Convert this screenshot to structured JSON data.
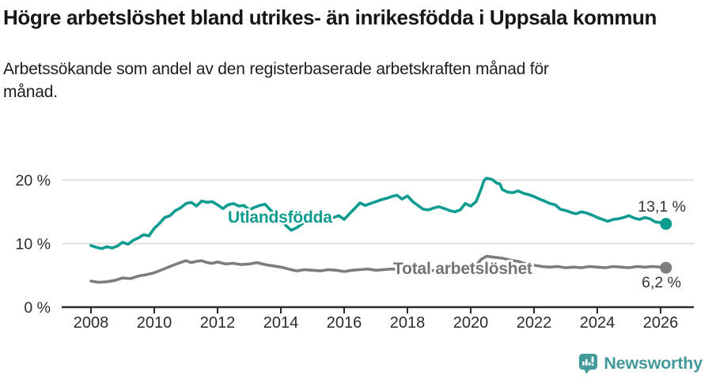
{
  "header": {
    "title": "Högre arbetslöshet bland utrikes- än inrikesfödda i Uppsala kommun",
    "subtitle": "Arbetssökande som andel av den registerbaserade arbetskraften månad för månad."
  },
  "footer": {
    "brand": "Newsworthy"
  },
  "colors": {
    "accent_teal": "#0d9c8f",
    "logo_teal": "#449a9b",
    "series_gray": "#7d7d7d",
    "label_gray": "#737373",
    "axis_dark": "#2a2a2a",
    "gridline": "#d8d8d8",
    "end_label": "#333333"
  },
  "chart_data": {
    "type": "line",
    "title": "Högre arbetslöshet bland utrikes- än inrikesfödda i Uppsala kommun",
    "subtitle": "Arbetssökande som andel av den registerbaserade arbetskraften månad för månad.",
    "unit": "% av arbetskraften",
    "grid": true,
    "x_axis": {
      "ticks": [
        2008,
        2010,
        2012,
        2014,
        2016,
        2018,
        2020,
        2022,
        2024,
        2026
      ],
      "tick_labels": [
        "2008",
        "2010",
        "2012",
        "2014",
        "2016",
        "2018",
        "2020",
        "2022",
        "2024",
        "2026"
      ],
      "range": [
        2007.08,
        2027.05
      ]
    },
    "y_axis": {
      "tick_values": [
        0,
        10,
        20
      ],
      "tick_labels": [
        "0 %",
        "10 %",
        "20 %"
      ],
      "range": [
        0,
        24
      ]
    },
    "series": [
      {
        "name": "Utlandsfödda",
        "color": "#0d9c8f",
        "label_color": "#0d9c8f",
        "end_label": "13,1 %",
        "end_value": 13.1,
        "points": [
          [
            2008.0,
            9.7
          ],
          [
            2008.17,
            9.4
          ],
          [
            2008.33,
            9.2
          ],
          [
            2008.5,
            9.5
          ],
          [
            2008.67,
            9.3
          ],
          [
            2008.83,
            9.6
          ],
          [
            2009.0,
            10.2
          ],
          [
            2009.17,
            9.9
          ],
          [
            2009.33,
            10.5
          ],
          [
            2009.5,
            10.9
          ],
          [
            2009.67,
            11.4
          ],
          [
            2009.83,
            11.2
          ],
          [
            2010.0,
            12.4
          ],
          [
            2010.17,
            13.2
          ],
          [
            2010.33,
            14.1
          ],
          [
            2010.5,
            14.4
          ],
          [
            2010.67,
            15.2
          ],
          [
            2010.83,
            15.6
          ],
          [
            2011.0,
            16.3
          ],
          [
            2011.17,
            16.5
          ],
          [
            2011.33,
            15.9
          ],
          [
            2011.5,
            16.7
          ],
          [
            2011.67,
            16.5
          ],
          [
            2011.83,
            16.6
          ],
          [
            2012.0,
            16.1
          ],
          [
            2012.17,
            15.5
          ],
          [
            2012.33,
            16.1
          ],
          [
            2012.5,
            16.3
          ],
          [
            2012.67,
            15.9
          ],
          [
            2012.83,
            16.0
          ],
          [
            2013.0,
            15.3
          ],
          [
            2013.17,
            15.7
          ],
          [
            2013.33,
            16.0
          ],
          [
            2013.5,
            16.2
          ],
          [
            2013.67,
            15.3
          ],
          [
            2013.83,
            14.5
          ],
          [
            2014.0,
            13.7
          ],
          [
            2014.17,
            12.8
          ],
          [
            2014.33,
            12.1
          ],
          [
            2014.5,
            12.5
          ],
          [
            2014.67,
            13.1
          ],
          [
            2014.83,
            13.6
          ],
          [
            2015.0,
            13.9
          ],
          [
            2015.17,
            14.2
          ],
          [
            2015.33,
            13.9
          ],
          [
            2015.5,
            14.3
          ],
          [
            2015.67,
            14.1
          ],
          [
            2015.83,
            14.4
          ],
          [
            2016.0,
            13.8
          ],
          [
            2016.17,
            14.7
          ],
          [
            2016.33,
            15.5
          ],
          [
            2016.5,
            16.4
          ],
          [
            2016.67,
            16.0
          ],
          [
            2016.83,
            16.3
          ],
          [
            2017.0,
            16.6
          ],
          [
            2017.17,
            16.9
          ],
          [
            2017.33,
            17.1
          ],
          [
            2017.5,
            17.4
          ],
          [
            2017.67,
            17.6
          ],
          [
            2017.83,
            17.0
          ],
          [
            2018.0,
            17.5
          ],
          [
            2018.17,
            16.6
          ],
          [
            2018.33,
            16.0
          ],
          [
            2018.5,
            15.4
          ],
          [
            2018.67,
            15.3
          ],
          [
            2018.83,
            15.6
          ],
          [
            2019.0,
            15.8
          ],
          [
            2019.17,
            15.5
          ],
          [
            2019.33,
            15.2
          ],
          [
            2019.5,
            15.0
          ],
          [
            2019.67,
            15.3
          ],
          [
            2019.83,
            16.3
          ],
          [
            2020.0,
            15.9
          ],
          [
            2020.17,
            16.6
          ],
          [
            2020.33,
            18.6
          ],
          [
            2020.42,
            19.9
          ],
          [
            2020.5,
            20.3
          ],
          [
            2020.67,
            20.1
          ],
          [
            2020.83,
            19.5
          ],
          [
            2020.92,
            19.4
          ],
          [
            2021.0,
            18.5
          ],
          [
            2021.17,
            18.1
          ],
          [
            2021.33,
            18.0
          ],
          [
            2021.5,
            18.3
          ],
          [
            2021.67,
            17.9
          ],
          [
            2021.83,
            17.7
          ],
          [
            2022.0,
            17.4
          ],
          [
            2022.17,
            17.0
          ],
          [
            2022.33,
            16.7
          ],
          [
            2022.5,
            16.3
          ],
          [
            2022.67,
            16.1
          ],
          [
            2022.83,
            15.4
          ],
          [
            2023.0,
            15.2
          ],
          [
            2023.17,
            14.9
          ],
          [
            2023.33,
            14.7
          ],
          [
            2023.5,
            15.0
          ],
          [
            2023.67,
            14.8
          ],
          [
            2023.83,
            14.5
          ],
          [
            2024.0,
            14.1
          ],
          [
            2024.17,
            13.8
          ],
          [
            2024.33,
            13.5
          ],
          [
            2024.5,
            13.8
          ],
          [
            2024.67,
            13.9
          ],
          [
            2024.83,
            14.1
          ],
          [
            2025.0,
            14.4
          ],
          [
            2025.17,
            14.0
          ],
          [
            2025.33,
            13.8
          ],
          [
            2025.5,
            14.1
          ],
          [
            2025.67,
            13.9
          ],
          [
            2025.83,
            13.4
          ],
          [
            2026.0,
            13.3
          ],
          [
            2026.17,
            13.1
          ]
        ]
      },
      {
        "name": "Total arbetslöshet",
        "color": "#7d7d7d",
        "label_color": "#737373",
        "end_label": "6,2 %",
        "end_value": 6.2,
        "points": [
          [
            2008.0,
            4.1
          ],
          [
            2008.25,
            3.9
          ],
          [
            2008.5,
            4.0
          ],
          [
            2008.75,
            4.2
          ],
          [
            2009.0,
            4.6
          ],
          [
            2009.25,
            4.5
          ],
          [
            2009.5,
            4.9
          ],
          [
            2009.75,
            5.1
          ],
          [
            2010.0,
            5.4
          ],
          [
            2010.25,
            5.9
          ],
          [
            2010.5,
            6.4
          ],
          [
            2010.75,
            6.9
          ],
          [
            2011.0,
            7.3
          ],
          [
            2011.17,
            7.0
          ],
          [
            2011.33,
            7.2
          ],
          [
            2011.5,
            7.3
          ],
          [
            2011.67,
            7.0
          ],
          [
            2011.83,
            6.9
          ],
          [
            2012.0,
            7.1
          ],
          [
            2012.25,
            6.8
          ],
          [
            2012.5,
            6.9
          ],
          [
            2012.75,
            6.7
          ],
          [
            2013.0,
            6.8
          ],
          [
            2013.25,
            7.0
          ],
          [
            2013.5,
            6.7
          ],
          [
            2013.75,
            6.5
          ],
          [
            2014.0,
            6.3
          ],
          [
            2014.25,
            6.0
          ],
          [
            2014.5,
            5.7
          ],
          [
            2014.75,
            5.9
          ],
          [
            2015.0,
            5.8
          ],
          [
            2015.25,
            5.7
          ],
          [
            2015.5,
            5.9
          ],
          [
            2015.75,
            5.8
          ],
          [
            2016.0,
            5.6
          ],
          [
            2016.25,
            5.8
          ],
          [
            2016.5,
            5.9
          ],
          [
            2016.75,
            6.0
          ],
          [
            2017.0,
            5.8
          ],
          [
            2017.25,
            5.9
          ],
          [
            2017.5,
            6.0
          ],
          [
            2017.75,
            5.9
          ],
          [
            2018.0,
            5.8
          ],
          [
            2018.25,
            5.9
          ],
          [
            2018.5,
            5.7
          ],
          [
            2018.75,
            5.8
          ],
          [
            2019.0,
            5.7
          ],
          [
            2019.25,
            5.8
          ],
          [
            2019.5,
            5.7
          ],
          [
            2019.75,
            5.9
          ],
          [
            2020.0,
            6.1
          ],
          [
            2020.17,
            6.6
          ],
          [
            2020.33,
            7.5
          ],
          [
            2020.5,
            8.0
          ],
          [
            2020.67,
            7.9
          ],
          [
            2020.83,
            7.8
          ],
          [
            2021.0,
            7.7
          ],
          [
            2021.25,
            7.4
          ],
          [
            2021.5,
            7.2
          ],
          [
            2021.75,
            6.8
          ],
          [
            2022.0,
            6.6
          ],
          [
            2022.25,
            6.4
          ],
          [
            2022.5,
            6.3
          ],
          [
            2022.75,
            6.4
          ],
          [
            2023.0,
            6.2
          ],
          [
            2023.25,
            6.3
          ],
          [
            2023.5,
            6.2
          ],
          [
            2023.75,
            6.4
          ],
          [
            2024.0,
            6.3
          ],
          [
            2024.25,
            6.2
          ],
          [
            2024.5,
            6.4
          ],
          [
            2024.75,
            6.3
          ],
          [
            2025.0,
            6.2
          ],
          [
            2025.25,
            6.4
          ],
          [
            2025.5,
            6.3
          ],
          [
            2025.75,
            6.4
          ],
          [
            2026.0,
            6.3
          ],
          [
            2026.17,
            6.2
          ]
        ]
      }
    ]
  }
}
